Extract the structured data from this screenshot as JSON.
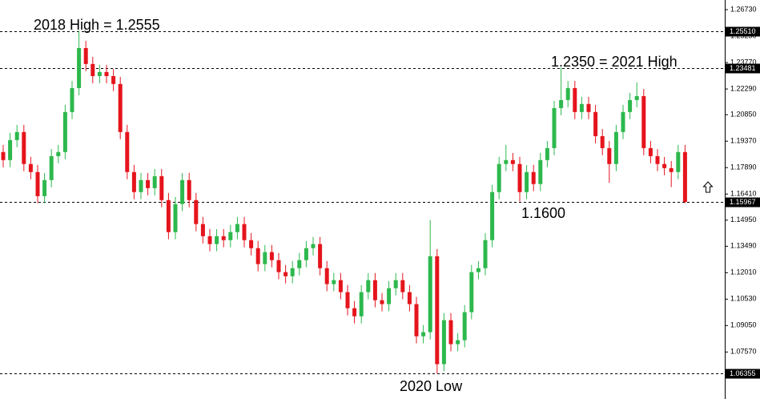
{
  "chart_data": {
    "type": "candlestick",
    "up_color": "#2db84d",
    "down_color": "#e5141c",
    "ylim": [
      1.0494,
      1.2727
    ],
    "yticks": [
      {
        "value": 1.2673,
        "label": "1.26730"
      },
      {
        "value": 1.2525,
        "label": "1.25250"
      },
      {
        "value": 1.2377,
        "label": "1.23770"
      },
      {
        "value": 1.2229,
        "label": "1.22290"
      },
      {
        "value": 1.2085,
        "label": "1.20850"
      },
      {
        "value": 1.1937,
        "label": "1.19370"
      },
      {
        "value": 1.1789,
        "label": "1.17890"
      },
      {
        "value": 1.1641,
        "label": "1.16410"
      },
      {
        "value": 1.1495,
        "label": "1.14950"
      },
      {
        "value": 1.1349,
        "label": "1.13490"
      },
      {
        "value": 1.1201,
        "label": "1.12010"
      },
      {
        "value": 1.1053,
        "label": "1.10530"
      },
      {
        "value": 1.0905,
        "label": "1.09050"
      },
      {
        "value": 1.0757,
        "label": "1.07570"
      }
    ],
    "price_lines": [
      {
        "value": 1.2551,
        "label": "1.25510"
      },
      {
        "value": 1.23481,
        "label": "1.23481"
      },
      {
        "value": 1.15967,
        "label": "1.15967"
      },
      {
        "value": 1.06355,
        "label": "1.06355"
      }
    ],
    "annotations": [
      "2018 High = 1.2555",
      "1.2350 = 2021 High",
      "1.1600",
      "2020 Low"
    ],
    "open": [
      1.1876,
      1.1831,
      1.1943,
      1.1988,
      1.1809,
      1.1764,
      1.1629,
      1.1719,
      1.1853,
      1.1876,
      1.21,
      1.2234,
      1.2458,
      1.2369,
      1.2301,
      1.2324,
      1.2301,
      1.2257,
      1.1988,
      1.1764,
      1.1652,
      1.1719,
      1.1674,
      1.1741,
      1.1607,
      1.1428,
      1.1585,
      1.1719,
      1.1607,
      1.1473,
      1.1405,
      1.1361,
      1.1405,
      1.1383,
      1.1428,
      1.1473,
      1.1383,
      1.1338,
      1.1249,
      1.1316,
      1.1271,
      1.1204,
      1.1181,
      1.1226,
      1.1271,
      1.1338,
      1.1361,
      1.1226,
      1.1137,
      1.1159,
      1.1092,
      1.1002,
      1.0957,
      1.1092,
      1.1159,
      1.1047,
      1.1025,
      1.1114,
      1.1159,
      1.1092,
      1.1025,
      1.0845,
      1.0868,
      1.1293,
      1.0689,
      1.0935,
      1.0801,
      1.0823,
      1.098,
      1.1204,
      1.1226,
      1.1383,
      1.1652,
      1.1809,
      1.1831,
      1.1809,
      1.1652,
      1.1764,
      1.1697,
      1.1831,
      1.1898,
      1.2122,
      1.2167,
      1.2234,
      1.21,
      1.2145,
      1.21,
      1.1965,
      1.1898,
      1.1809,
      1.1988,
      1.21,
      1.2167,
      1.2189,
      1.1898,
      1.1853,
      1.1809,
      1.1786,
      1.1764,
      1.1876
    ],
    "high": [
      1.1916,
      1.1983,
      1.2028,
      1.2028,
      1.1849,
      1.1804,
      1.1759,
      1.1893,
      1.1916,
      1.214,
      1.2274,
      1.2555,
      1.2498,
      1.2409,
      1.2364,
      1.2364,
      1.2341,
      1.2297,
      1.2028,
      1.1804,
      1.1759,
      1.1759,
      1.1781,
      1.1781,
      1.1647,
      1.1625,
      1.1759,
      1.1759,
      1.1647,
      1.1513,
      1.1445,
      1.1445,
      1.1445,
      1.1468,
      1.1513,
      1.1513,
      1.1423,
      1.1378,
      1.1356,
      1.1356,
      1.1311,
      1.1244,
      1.1266,
      1.1311,
      1.1378,
      1.1401,
      1.1401,
      1.1266,
      1.1199,
      1.1199,
      1.1132,
      1.1042,
      1.1132,
      1.1199,
      1.1199,
      1.1087,
      1.1154,
      1.1199,
      1.1199,
      1.1132,
      1.1065,
      1.0908,
      1.1495,
      1.1333,
      1.0975,
      1.0975,
      1.0863,
      1.102,
      1.1244,
      1.1266,
      1.1423,
      1.1692,
      1.1849,
      1.1916,
      1.1871,
      1.1849,
      1.1804,
      1.1804,
      1.1871,
      1.1938,
      1.2162,
      1.235,
      1.2274,
      1.2274,
      1.2185,
      1.2185,
      1.214,
      1.2005,
      1.1938,
      1.2028,
      1.214,
      1.2207,
      1.2266,
      1.2229,
      1.1938,
      1.1893,
      1.1849,
      1.1826,
      1.1916,
      1.1916
    ],
    "low": [
      1.1791,
      1.1791,
      1.1903,
      1.1769,
      1.1724,
      1.1589,
      1.1589,
      1.1679,
      1.1813,
      1.1836,
      1.206,
      1.2194,
      1.2329,
      1.2261,
      1.2261,
      1.2261,
      1.2217,
      1.1948,
      1.1724,
      1.1612,
      1.1612,
      1.1634,
      1.1634,
      1.1567,
      1.1388,
      1.1388,
      1.1545,
      1.1567,
      1.1433,
      1.1365,
      1.1321,
      1.1321,
      1.1343,
      1.1343,
      1.1388,
      1.1343,
      1.1298,
      1.1209,
      1.1209,
      1.1231,
      1.1164,
      1.1141,
      1.1141,
      1.1186,
      1.1231,
      1.1298,
      1.1186,
      1.1097,
      1.1097,
      1.1052,
      1.0962,
      1.0917,
      1.0917,
      1.1052,
      1.1007,
      1.0985,
      1.0985,
      1.1074,
      1.1052,
      1.0985,
      1.0805,
      1.0805,
      1.0828,
      1.0636,
      1.0649,
      1.0761,
      1.0761,
      1.0783,
      1.094,
      1.1164,
      1.1186,
      1.1343,
      1.1612,
      1.1769,
      1.1769,
      1.16,
      1.1612,
      1.1657,
      1.1657,
      1.1791,
      1.1858,
      1.2082,
      1.2127,
      1.206,
      1.206,
      1.206,
      1.1925,
      1.1858,
      1.1704,
      1.1769,
      1.1948,
      1.206,
      1.2127,
      1.1858,
      1.1813,
      1.1769,
      1.1746,
      1.168,
      1.1724,
      1.159
    ],
    "close": [
      1.1831,
      1.1943,
      1.1988,
      1.1809,
      1.1764,
      1.1629,
      1.1719,
      1.1853,
      1.1876,
      1.21,
      1.2234,
      1.2458,
      1.2369,
      1.2301,
      1.2324,
      1.2301,
      1.2257,
      1.1988,
      1.1764,
      1.1652,
      1.1719,
      1.1674,
      1.1741,
      1.1607,
      1.1428,
      1.1585,
      1.1719,
      1.1607,
      1.1473,
      1.1405,
      1.1361,
      1.1405,
      1.1383,
      1.1428,
      1.1473,
      1.1383,
      1.1338,
      1.1249,
      1.1316,
      1.1271,
      1.1204,
      1.1181,
      1.1226,
      1.1271,
      1.1338,
      1.1361,
      1.1226,
      1.1137,
      1.1159,
      1.1092,
      1.1002,
      1.0957,
      1.1092,
      1.1159,
      1.1047,
      1.1025,
      1.1114,
      1.1159,
      1.1092,
      1.1025,
      1.0845,
      1.0868,
      1.1293,
      1.0689,
      1.0935,
      1.0801,
      1.0823,
      1.098,
      1.1204,
      1.1226,
      1.1383,
      1.1652,
      1.1809,
      1.1831,
      1.1809,
      1.1652,
      1.1764,
      1.1697,
      1.1831,
      1.1898,
      1.2122,
      1.2167,
      1.2234,
      1.21,
      1.2145,
      1.21,
      1.1965,
      1.1898,
      1.1809,
      1.1988,
      1.21,
      1.2167,
      1.2189,
      1.1898,
      1.1853,
      1.1809,
      1.1786,
      1.1764,
      1.1876,
      1.1597
    ]
  }
}
